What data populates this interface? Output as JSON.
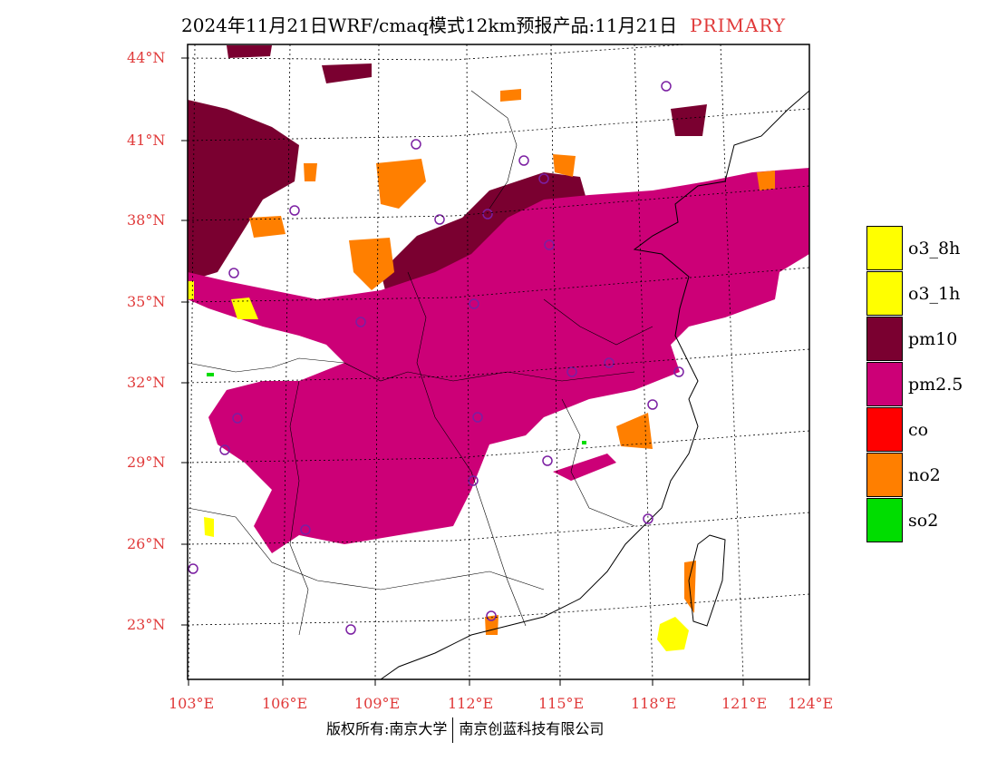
{
  "title": {
    "main": "2024年11月21日WRF/cmaq模式12km预报产品:11月21日",
    "tag": "PRIMARY"
  },
  "map": {
    "lat_labels": [
      "44°N",
      "41°N",
      "38°N",
      "35°N",
      "32°N",
      "29°N",
      "26°N",
      "23°N"
    ],
    "lon_labels": [
      "103°E",
      "106°E",
      "109°E",
      "112°E",
      "115°E",
      "118°E",
      "121°E",
      "124°E"
    ],
    "lon_range": [
      103,
      124
    ],
    "lat_range": [
      21,
      45
    ],
    "pollutant_colors": {
      "o3_8h": "#ffff00",
      "o3_1h": "#ffff00",
      "pm10": "#7a0030",
      "pm2.5": "#cc0077",
      "co": "#ff0000",
      "no2": "#ff7f00",
      "so2": "#00dd00"
    },
    "station_marker_color": "#7b1fa2"
  },
  "legend": [
    {
      "label": "o3_8h",
      "color": "#ffff00"
    },
    {
      "label": "o3_1h",
      "color": "#ffff00"
    },
    {
      "label": "pm10",
      "color": "#7a0030"
    },
    {
      "label": "pm2.5",
      "color": "#cc0077"
    },
    {
      "label": "co",
      "color": "#ff0000"
    },
    {
      "label": "no2",
      "color": "#ff7f00"
    },
    {
      "label": "so2",
      "color": "#00dd00"
    }
  ],
  "footer": {
    "left": "版权所有:南京大学",
    "right": "南京创蓝科技有限公司"
  }
}
